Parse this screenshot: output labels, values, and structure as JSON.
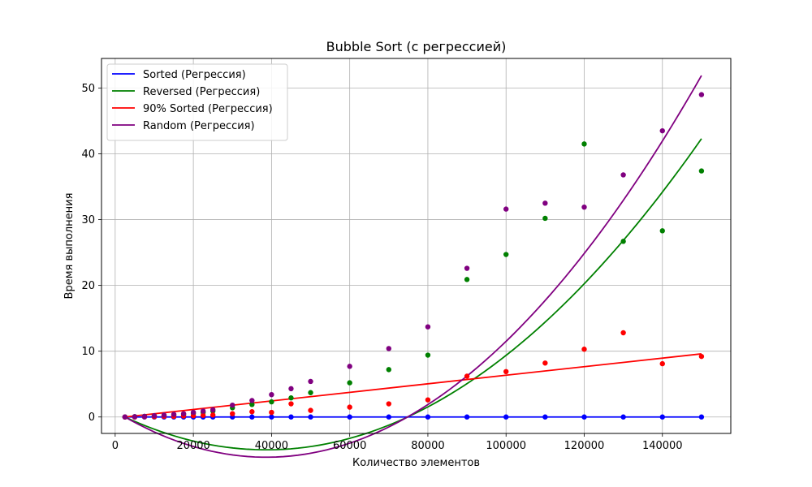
{
  "chart_data": {
    "type": "scatter",
    "title": "Bubble Sort (с регрессией)",
    "xlabel": "Количество элементов",
    "ylabel": "Время выполнения",
    "xlim": [
      -3500,
      157500
    ],
    "ylim": [
      -2.5,
      54.5
    ],
    "xticks": [
      0,
      20000,
      40000,
      60000,
      80000,
      100000,
      120000,
      140000
    ],
    "yticks": [
      0,
      10,
      20,
      30,
      40,
      50
    ],
    "grid": true,
    "legend_position": "top-left",
    "x": [
      2500,
      5000,
      7500,
      10000,
      12500,
      15000,
      17500,
      20000,
      22500,
      25000,
      30000,
      35000,
      40000,
      45000,
      50000,
      60000,
      70000,
      80000,
      90000,
      100000,
      110000,
      120000,
      130000,
      140000,
      150000
    ],
    "series": [
      {
        "name": "Sorted (Регрессия)",
        "color": "#0000ff",
        "points": [
          0,
          0,
          0,
          0,
          0,
          0,
          0,
          0,
          0,
          0,
          0,
          0,
          0,
          0,
          0,
          0,
          0,
          0,
          0,
          0,
          0,
          0,
          0,
          0,
          0
        ],
        "regression_type": "linear",
        "regression": [
          0.0,
          0.0
        ]
      },
      {
        "name": "Reversed (Регрессия)",
        "color": "#008000",
        "points": [
          0.0,
          0.05,
          0.1,
          0.15,
          0.2,
          0.3,
          0.4,
          0.55,
          0.7,
          0.9,
          1.4,
          1.9,
          2.3,
          2.9,
          3.7,
          5.2,
          7.2,
          9.4,
          20.9,
          24.7,
          30.2,
          41.5,
          26.7,
          28.3,
          37.4
        ],
        "regression_type": "quadratic",
        "regression": [
          0.0,
          0.4,
          42.3
        ]
      },
      {
        "name": "90% Sorted (Регрессия)",
        "color": "#ff0000",
        "points": [
          0.0,
          0.0,
          0.05,
          0.05,
          0.1,
          0.1,
          0.15,
          0.2,
          0.25,
          0.3,
          0.5,
          0.8,
          0.7,
          2.0,
          1.0,
          1.5,
          2.0,
          2.6,
          6.2,
          6.9,
          8.2,
          10.3,
          12.8,
          8.1,
          9.2
        ],
        "regression_type": "linear",
        "regression": [
          0.0,
          9.6
        ]
      },
      {
        "name": "Random (Регрессия)",
        "color": "#800080",
        "points": [
          0.0,
          0.05,
          0.1,
          0.2,
          0.3,
          0.4,
          0.5,
          0.7,
          0.9,
          1.1,
          1.8,
          2.5,
          3.4,
          4.3,
          5.4,
          7.7,
          10.4,
          13.7,
          22.6,
          31.6,
          32.5,
          31.9,
          36.8,
          43.5,
          49.0
        ],
        "regression_type": "quadratic",
        "regression": [
          0.0,
          0.5,
          51.9
        ]
      }
    ]
  }
}
